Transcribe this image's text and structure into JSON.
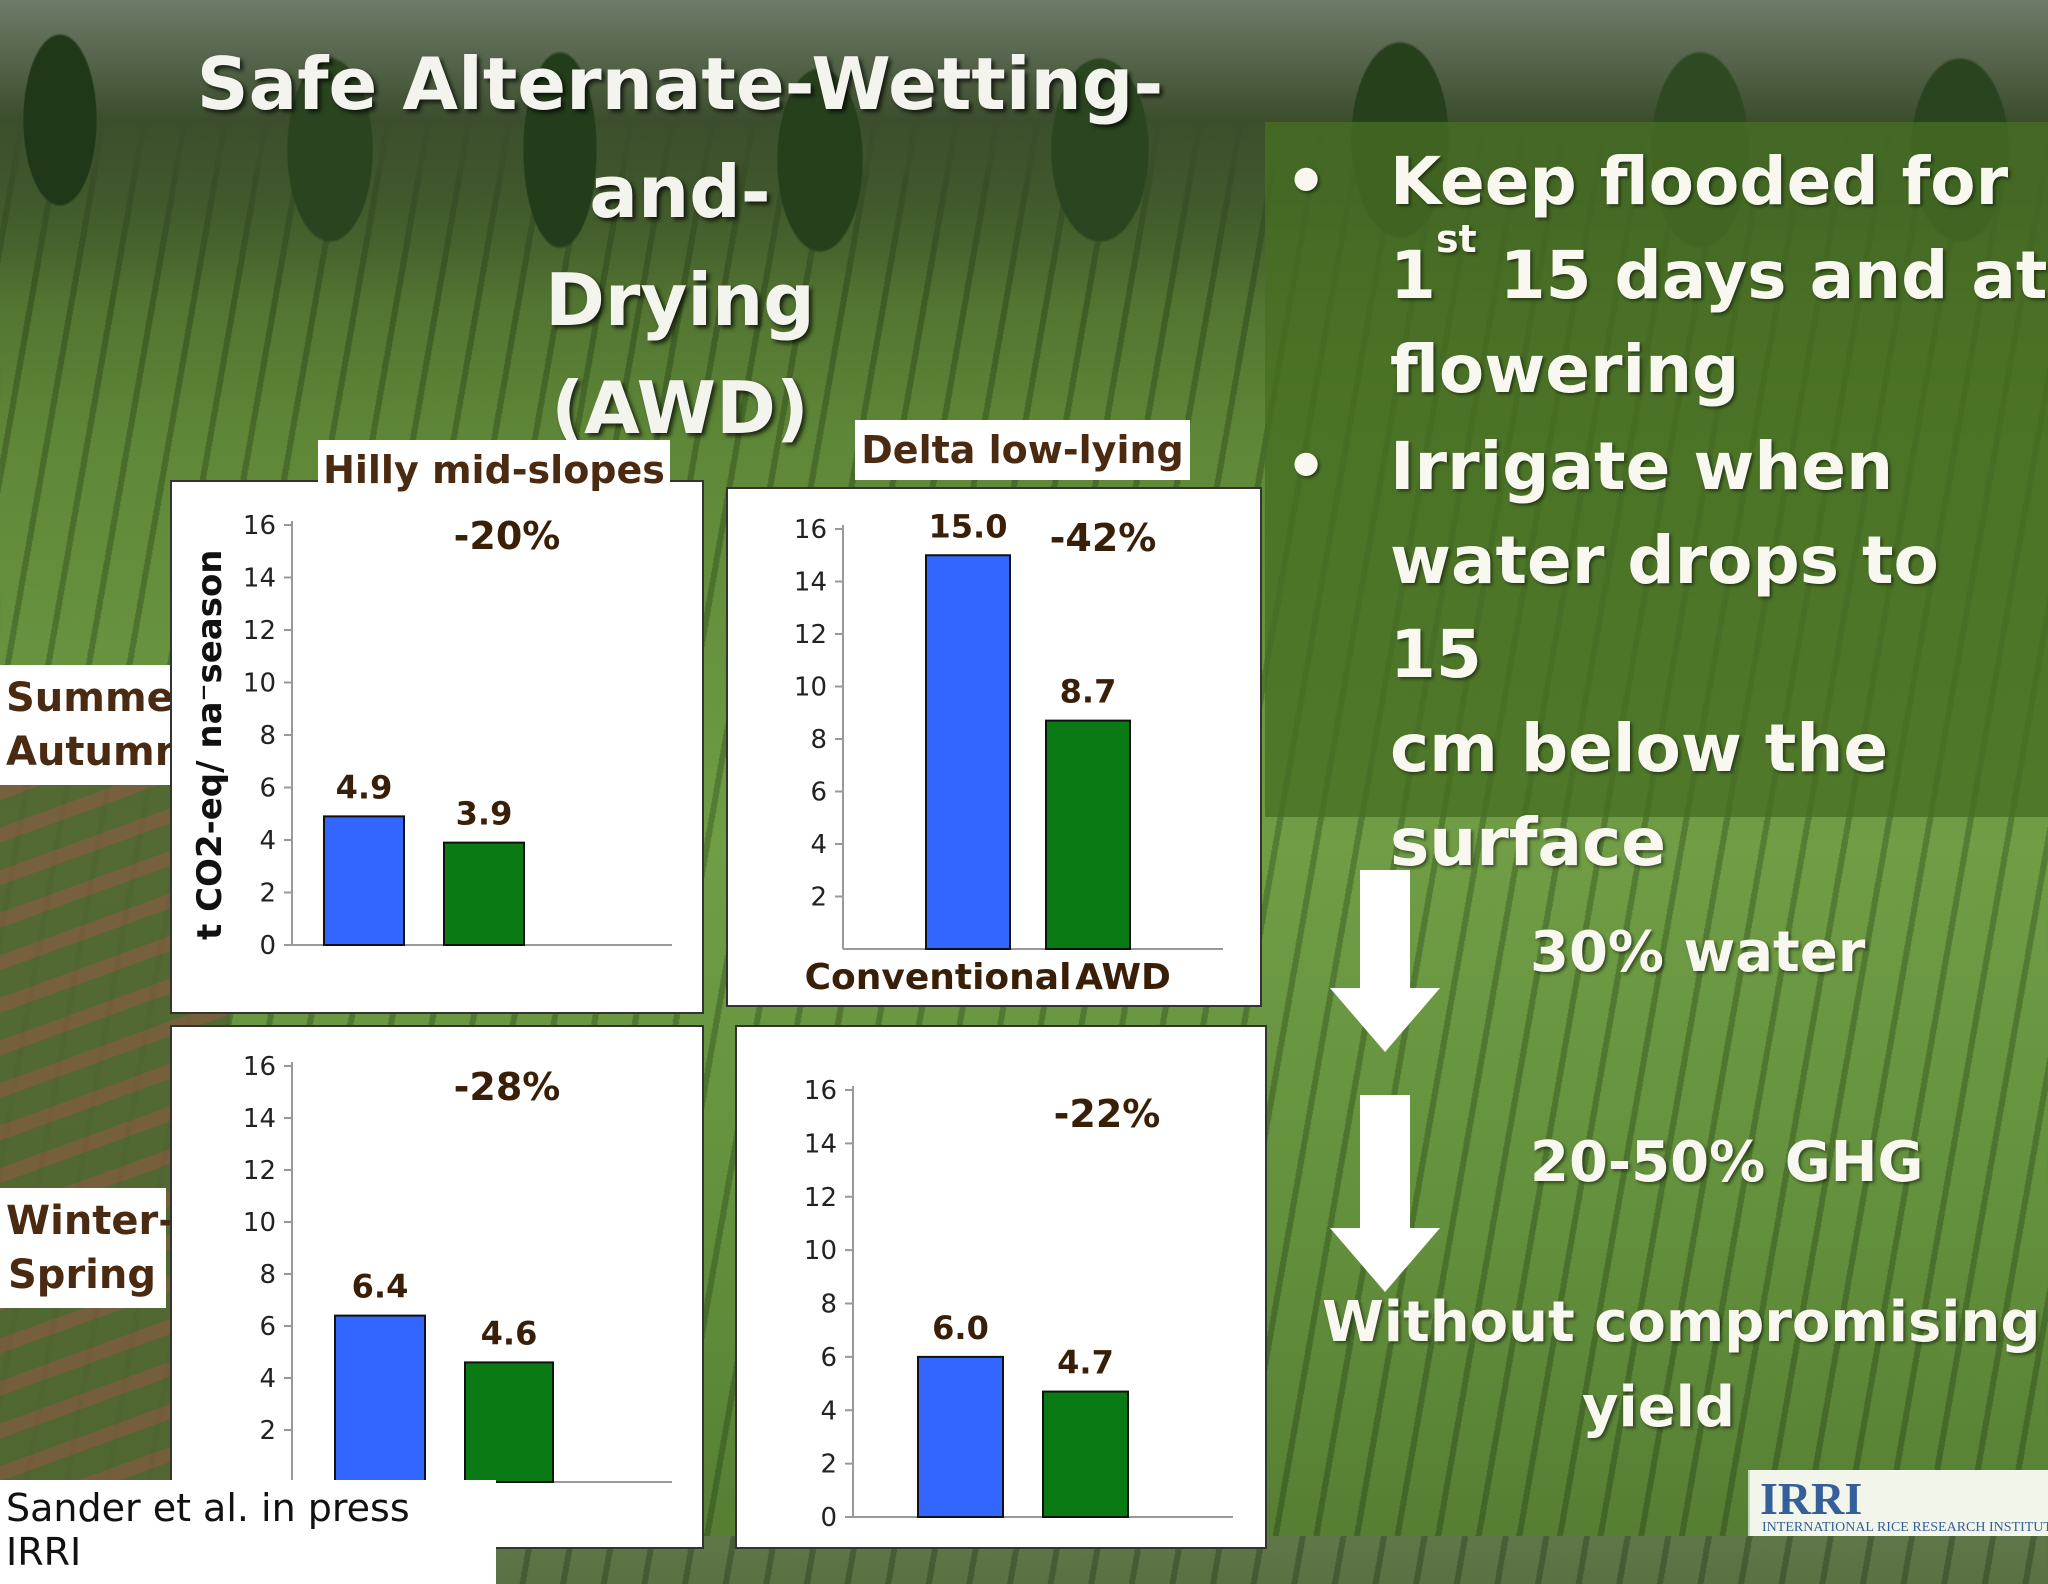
{
  "title": {
    "line1": "Safe Alternate-Wetting-and-",
    "line2": "Drying",
    "line3": "(AWD)"
  },
  "bullets": [
    {
      "lines": [
        "Keep flooded for",
        "1",
        "st",
        " 15 days and at",
        "flowering"
      ]
    },
    {
      "lines": [
        "Irrigate when",
        "water drops to 15",
        "cm below the",
        "surface"
      ]
    }
  ],
  "bullet_symbol": "•",
  "benefits": {
    "water": "30% water",
    "ghg": "20-50% GHG",
    "yield_line1": "Without compromising",
    "yield_line2": "yield"
  },
  "seasons": {
    "summer_line1": "Summer-",
    "summer_line2": "Autumn",
    "winter_line1": "Winter-",
    "winter_line2": "Spring"
  },
  "y_axis_label": "t CO2-eq/ na⁻season",
  "citation": "Sander et al. in press IRRI",
  "logo": {
    "big": "IRRI",
    "small": "INTERNATIONAL RICE RESEARCH INSTITUTE"
  },
  "colors": {
    "conventional": "#3366ff",
    "awd": "#0a7a14"
  },
  "chart_data": [
    {
      "type": "bar",
      "title": "Hilly mid-slopes",
      "season": "Summer-Autumn",
      "categories": [
        "Conventional",
        "AWD"
      ],
      "values": [
        4.9,
        3.9
      ],
      "value_labels": [
        "4.9",
        "3.9"
      ],
      "change": "-20%",
      "ylim": [
        0,
        16
      ],
      "yticks": [
        "0",
        "2",
        "4",
        "6",
        "8",
        "10",
        "12",
        "14",
        "16"
      ]
    },
    {
      "type": "bar",
      "title": "Delta low-lying",
      "season": "Summer-Autumn",
      "categories": [
        "Conventional",
        "AWD"
      ],
      "values": [
        15.0,
        8.7
      ],
      "value_labels": [
        "15.0",
        "8.7"
      ],
      "change": "-42%",
      "ylim": [
        0,
        16
      ],
      "yticks": [
        "2",
        "4",
        "6",
        "8",
        "10",
        "12",
        "14",
        "16"
      ],
      "xlabels": [
        "Conventional",
        "AWD"
      ]
    },
    {
      "type": "bar",
      "title": "",
      "season": "Winter-Spring",
      "categories": [
        "Conventional",
        "AWD"
      ],
      "values": [
        6.4,
        4.6
      ],
      "value_labels": [
        "6.4",
        "4.6"
      ],
      "change": "-28%",
      "ylim": [
        0,
        16
      ],
      "yticks": [
        "2",
        "4",
        "6",
        "8",
        "10",
        "12",
        "14",
        "16"
      ]
    },
    {
      "type": "bar",
      "title": "",
      "season": "Winter-Spring",
      "categories": [
        "Conventional",
        "AWD"
      ],
      "values": [
        6.0,
        4.7
      ],
      "value_labels": [
        "6.0",
        "4.7"
      ],
      "change": "-22%",
      "ylim": [
        0,
        16
      ],
      "yticks": [
        "0",
        "2",
        "4",
        "6",
        "8",
        "10",
        "12",
        "14",
        "16"
      ]
    }
  ]
}
